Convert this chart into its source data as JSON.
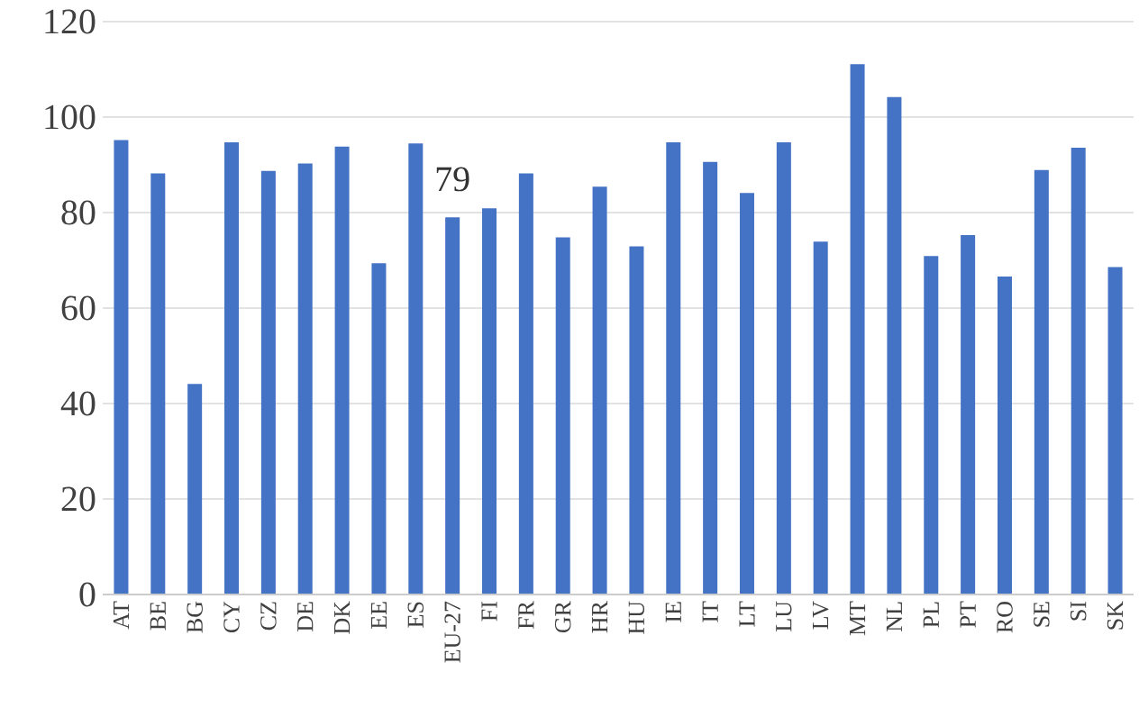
{
  "chart_data": {
    "type": "bar",
    "categories": [
      "AT",
      "BE",
      "BG",
      "CY",
      "CZ",
      "DE",
      "DK",
      "EE",
      "ES",
      "EU-27",
      "FI",
      "FR",
      "GR",
      "HR",
      "HU",
      "IE",
      "IT",
      "LT",
      "LU",
      "LV",
      "MT",
      "NL",
      "PL",
      "PT",
      "RO",
      "SE",
      "SI",
      "SK"
    ],
    "values": [
      95.2,
      88.2,
      44.1,
      94.7,
      88.7,
      90.3,
      93.8,
      69.4,
      94.5,
      79,
      80.9,
      88.2,
      74.8,
      85.4,
      72.9,
      94.7,
      90.6,
      84.1,
      94.7,
      73.9,
      111.1,
      104.2,
      70.9,
      75.3,
      66.6,
      88.9,
      93.6,
      68.6
    ],
    "value_labels": [
      null,
      null,
      null,
      null,
      null,
      null,
      null,
      null,
      null,
      "79",
      null,
      null,
      null,
      null,
      null,
      null,
      null,
      null,
      null,
      null,
      null,
      null,
      null,
      null,
      null,
      null,
      null,
      null
    ],
    "color": "#4472c4",
    "ylim": [
      0,
      120
    ],
    "yticks": [
      0,
      20,
      40,
      60,
      80,
      100,
      120
    ],
    "grid": "y"
  }
}
